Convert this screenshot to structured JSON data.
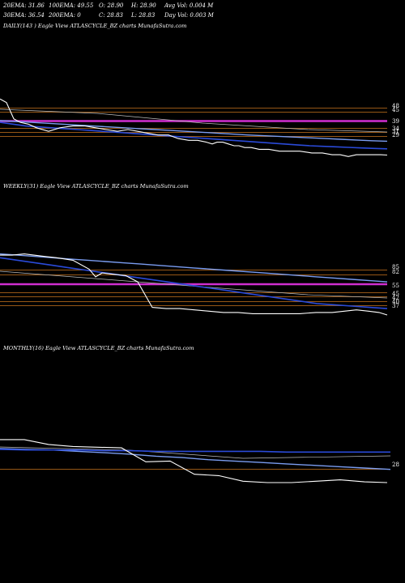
{
  "header": {
    "ema20": "20EMA: 31.86",
    "ema100": "100EMA: 49.55",
    "open": "O: 28.90",
    "high": "H: 28.90",
    "avg_vol": "Avg Vol: 0.004  M",
    "ema30": "30EMA: 36.54",
    "ema200": "200EMA: 0",
    "close": "C: 28.83",
    "low": "L: 28.83",
    "day_vol": "Day Vol: 0.003 M"
  },
  "colors": {
    "background": "#000000",
    "price": "#ffffff",
    "ema_fast": "#2a4ad8",
    "ema_slow": "#7a9cf0",
    "level": "#c8741e",
    "magenta": "#d02ed0",
    "grey": "#bdbdbd"
  },
  "chart_data": [
    {
      "type": "line",
      "title": "DAILY(143     ) Eagle  View  ATLASCYCLE_BZ charts MunafaSutra.com",
      "level_labels": [
        "48",
        "45",
        "39",
        "34",
        "31",
        "29"
      ],
      "price": [
        60,
        58,
        49,
        47,
        46,
        44,
        42,
        44,
        45,
        45,
        44,
        43,
        42,
        43,
        42,
        41,
        40,
        40,
        38,
        37,
        37,
        36,
        35,
        36,
        36,
        35,
        34,
        34,
        33,
        33,
        32,
        32,
        31,
        31,
        31,
        30,
        30,
        29,
        29,
        28,
        29,
        29,
        29,
        29,
        28.83
      ],
      "ema_fast": [
        47,
        46,
        45,
        44.5,
        44,
        43.5,
        43,
        42.5,
        42,
        41.5,
        41,
        40.5,
        40,
        39.5,
        39,
        38.5,
        38,
        37.5,
        37,
        36.5,
        36,
        35.5,
        35,
        34.5,
        34,
        33.7,
        33.4,
        33.1,
        32.8,
        32.5,
        32.3
      ],
      "ema_slow": [
        48,
        47.5,
        47,
        46.5,
        46,
        45.5,
        45,
        44.5,
        44,
        43.5,
        43,
        42.5,
        42,
        41.5,
        41,
        40.5,
        40,
        39.6,
        39.2,
        38.8,
        38.4,
        38,
        37.6,
        37.2,
        36.8,
        36.5
      ],
      "ylim": [
        25,
        70
      ]
    },
    {
      "type": "line",
      "title": "WEEKLY(31) Eagle  View  ATLASCYCLE_BZ charts MunafaSutra.com",
      "level_labels": [
        "85",
        "82",
        "55",
        "45",
        "42",
        "40",
        "37"
      ],
      "price": [
        84,
        84,
        85,
        84,
        83,
        82,
        80,
        73,
        67,
        70,
        69,
        68,
        63,
        43,
        42,
        42,
        41,
        40,
        39,
        39,
        38,
        38,
        38,
        38,
        39,
        39,
        40,
        41,
        40,
        39,
        37
      ],
      "ema_fast": [
        82,
        80,
        78,
        76,
        74,
        72,
        70,
        68,
        66,
        64,
        62,
        60,
        58,
        56,
        54,
        52,
        50,
        48,
        46,
        45,
        44,
        43,
        42
      ],
      "ema_slow": [
        85,
        84,
        83,
        82,
        81,
        80,
        79,
        78,
        77,
        76,
        75,
        74,
        73,
        72,
        71,
        70,
        69,
        68,
        67,
        66,
        65,
        64,
        63
      ],
      "ylim": [
        30,
        100
      ]
    },
    {
      "type": "line",
      "title": "MONTHLY(16) Eagle  View  ATLASCYCLE_BZ charts MunafaSutra.com",
      "level_labels": [
        "28"
      ],
      "price": [
        110,
        110,
        103,
        100,
        99,
        98,
        78,
        79,
        60,
        58,
        50,
        48,
        48,
        50,
        52,
        49,
        48
      ],
      "ema_fast": [
        96,
        95,
        95,
        95,
        94,
        94,
        93,
        93,
        93,
        93,
        93,
        92,
        92,
        92,
        92,
        92
      ],
      "ema_slow": [
        97,
        96,
        95,
        93,
        91,
        89,
        86,
        84,
        81,
        79,
        77,
        75,
        73,
        71,
        69,
        67
      ],
      "ylim": [
        20,
        160
      ]
    }
  ]
}
